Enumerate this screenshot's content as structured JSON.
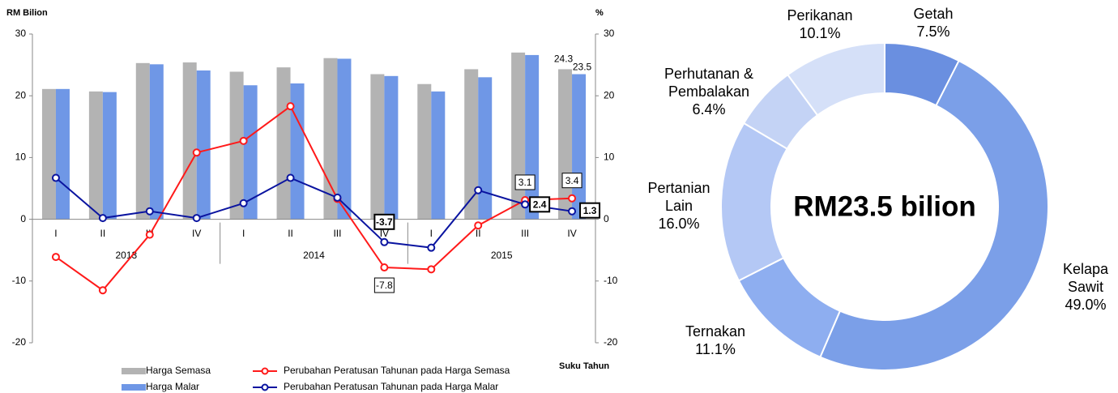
{
  "chart_data": [
    {
      "type": "bar_line",
      "y_label": "RM Bilion",
      "y2_label": "%",
      "x_label": "Suku Tahun",
      "categories": [
        "I",
        "II",
        "III",
        "IV",
        "I",
        "II",
        "III",
        "IV",
        "I",
        "II",
        "III",
        "IV"
      ],
      "category_groups": [
        "2013",
        "2014",
        "2015"
      ],
      "ylim": [
        -20,
        30
      ],
      "yticks": [
        -20,
        -10,
        0,
        10,
        20,
        30
      ],
      "y2lim": [
        -20,
        30
      ],
      "y2ticks": [
        -20,
        -10,
        0,
        10,
        20,
        30
      ],
      "series": [
        {
          "name": "Harga Semasa",
          "kind": "bar",
          "color": "#b3b3b3",
          "values": [
            21.1,
            20.7,
            25.3,
            25.4,
            23.9,
            24.6,
            26.1,
            23.5,
            21.9,
            24.3,
            27.0,
            24.3
          ],
          "value_labels": [
            null,
            null,
            null,
            null,
            null,
            null,
            null,
            null,
            null,
            null,
            null,
            "24.3"
          ]
        },
        {
          "name": "Harga Malar",
          "kind": "bar",
          "color": "#6f97e6",
          "values": [
            21.1,
            20.6,
            25.1,
            24.1,
            21.7,
            22.0,
            26.0,
            23.2,
            20.7,
            23.0,
            26.6,
            23.5
          ],
          "value_labels": [
            null,
            null,
            null,
            null,
            null,
            null,
            null,
            null,
            null,
            null,
            null,
            "23.5"
          ]
        },
        {
          "name": "Perubahan Peratusan Tahunan pada Harga Semasa",
          "kind": "line",
          "axis": "y2",
          "color": "#ff1a1a",
          "values": [
            -6.1,
            -11.5,
            -2.5,
            10.8,
            12.7,
            18.3,
            3.3,
            -7.8,
            -8.1,
            -1.0,
            3.1,
            3.4
          ],
          "value_labels": [
            null,
            null,
            null,
            null,
            null,
            null,
            null,
            "-7.8",
            null,
            null,
            "3.1",
            "3.4"
          ]
        },
        {
          "name": "Perubahan Peratusan Tahunan pada Harga Malar",
          "kind": "line",
          "axis": "y2",
          "color": "#0a14a0",
          "values": [
            6.7,
            0.2,
            1.3,
            0.2,
            2.6,
            6.7,
            3.5,
            -3.7,
            -4.6,
            4.7,
            2.4,
            1.3
          ],
          "value_labels": [
            null,
            null,
            null,
            null,
            null,
            null,
            null,
            "-3.7",
            null,
            null,
            "2.4",
            "1.3"
          ]
        }
      ]
    },
    {
      "type": "donut",
      "center_text": "RM23.5 bilion",
      "categories": [
        [
          "Getah"
        ],
        [
          "Kelapa",
          "Sawit"
        ],
        [
          "Ternakan"
        ],
        [
          "Pertanian",
          "Lain"
        ],
        [
          "Perhutanan &",
          "Pembalakan"
        ],
        [
          "Perikanan"
        ]
      ],
      "values": [
        7.5,
        49.0,
        11.1,
        16.0,
        6.4,
        10.1
      ],
      "value_labels": [
        "7.5%",
        "49.0%",
        "11.1%",
        "16.0%",
        "6.4%",
        "10.1%"
      ],
      "colors": [
        "#6a8fe0",
        "#7b9fe8",
        "#8eaef0",
        "#b4c8f5",
        "#c4d3f5",
        "#d5e0f8"
      ]
    }
  ]
}
